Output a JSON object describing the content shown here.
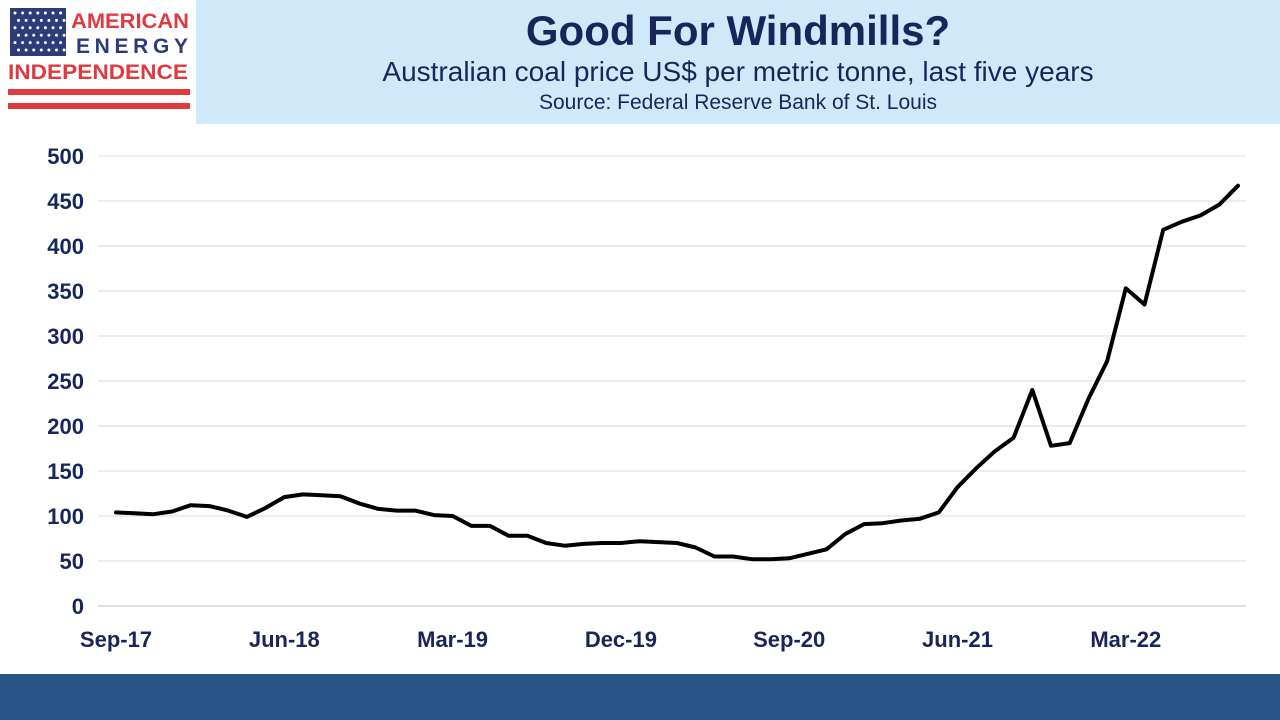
{
  "logo": {
    "line1": "AMERICAN",
    "line2": "ENERGY",
    "line3": "INDEPENDENCE",
    "colors": {
      "red": "#e03a3e",
      "blue": "#2c3b7a"
    }
  },
  "header": {
    "title": "Good For Windmills?",
    "subtitle": "Australian coal price US$ per metric tonne, last five years",
    "source": "Source: Federal Reserve Bank of St. Louis"
  },
  "chart_data": {
    "type": "line",
    "title": "Good For Windmills?",
    "subtitle": "Australian coal price US$ per metric tonne, last five years",
    "xlabel": "",
    "ylabel": "",
    "ylim": [
      0,
      500
    ],
    "yticks": [
      0,
      50,
      100,
      150,
      200,
      250,
      300,
      350,
      400,
      450,
      500
    ],
    "xtick_labels": [
      "Sep-17",
      "Jun-18",
      "Mar-19",
      "Dec-19",
      "Sep-20",
      "Jun-21",
      "Mar-22"
    ],
    "grid": true,
    "legend": false,
    "line_color": "#000000",
    "x": [
      "Sep-17",
      "Oct-17",
      "Nov-17",
      "Dec-17",
      "Jan-18",
      "Feb-18",
      "Mar-18",
      "Apr-18",
      "May-18",
      "Jun-18",
      "Jul-18",
      "Aug-18",
      "Sep-18",
      "Oct-18",
      "Nov-18",
      "Dec-18",
      "Jan-19",
      "Feb-19",
      "Mar-19",
      "Apr-19",
      "May-19",
      "Jun-19",
      "Jul-19",
      "Aug-19",
      "Sep-19",
      "Oct-19",
      "Nov-19",
      "Dec-19",
      "Jan-20",
      "Feb-20",
      "Mar-20",
      "Apr-20",
      "May-20",
      "Jun-20",
      "Jul-20",
      "Aug-20",
      "Sep-20",
      "Oct-20",
      "Nov-20",
      "Dec-20",
      "Jan-21",
      "Feb-21",
      "Mar-21",
      "Apr-21",
      "May-21",
      "Jun-21",
      "Jul-21",
      "Aug-21",
      "Sep-21",
      "Oct-21",
      "Nov-21",
      "Dec-21",
      "Jan-22",
      "Feb-22",
      "Mar-22",
      "Apr-22",
      "May-22",
      "Jun-22",
      "Jul-22",
      "Aug-22",
      "Sep-22"
    ],
    "series": [
      {
        "values": [
          104,
          103,
          102,
          105,
          112,
          111,
          106,
          99,
          109,
          121,
          124,
          123,
          122,
          114,
          108,
          106,
          106,
          101,
          100,
          89,
          89,
          78,
          78,
          70,
          67,
          69,
          70,
          70,
          72,
          71,
          70,
          65,
          55,
          55,
          52,
          52,
          53,
          58,
          63,
          80,
          91,
          92,
          95,
          97,
          104,
          132,
          153,
          172,
          187,
          240,
          178,
          181,
          230,
          272,
          353,
          335,
          418,
          427,
          434,
          446,
          467
        ]
      }
    ]
  }
}
